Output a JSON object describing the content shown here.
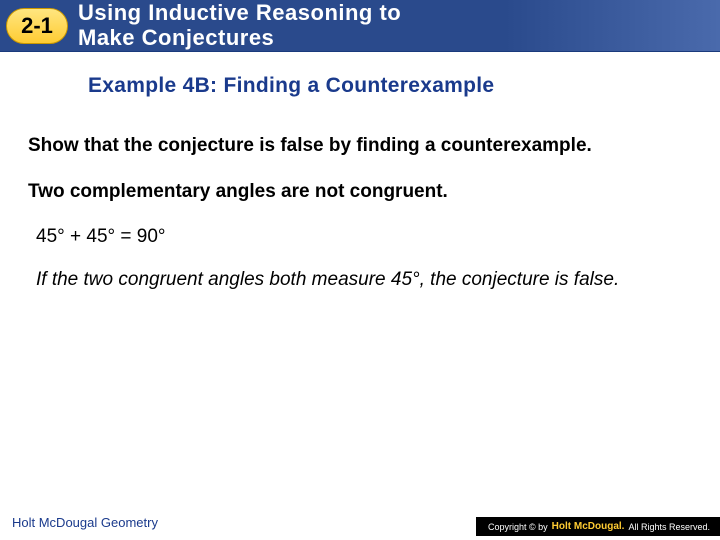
{
  "header": {
    "section_number": "2-1",
    "title_line1": "Using Inductive Reasoning to",
    "title_line2": "Make Conjectures",
    "bg_color_start": "#2a4a8c",
    "bg_color_end": "#4a6aac",
    "badge_color": "#ffcc33"
  },
  "example": {
    "title": "Example 4B: Finding a Counterexample",
    "title_color": "#1a3a8c"
  },
  "content": {
    "instruction": "Show that the conjecture is false by finding a counterexample.",
    "conjecture": "Two complementary angles are not congruent.",
    "equation": "45° + 45° = 90°",
    "conclusion": "If the two congruent angles both measure 45°, the conjecture is false."
  },
  "footer": {
    "left": "Holt McDougal Geometry",
    "copyright_prefix": "Copyright © by",
    "copyright_brand": "Holt McDougal.",
    "copyright_suffix": "All Rights Reserved."
  }
}
